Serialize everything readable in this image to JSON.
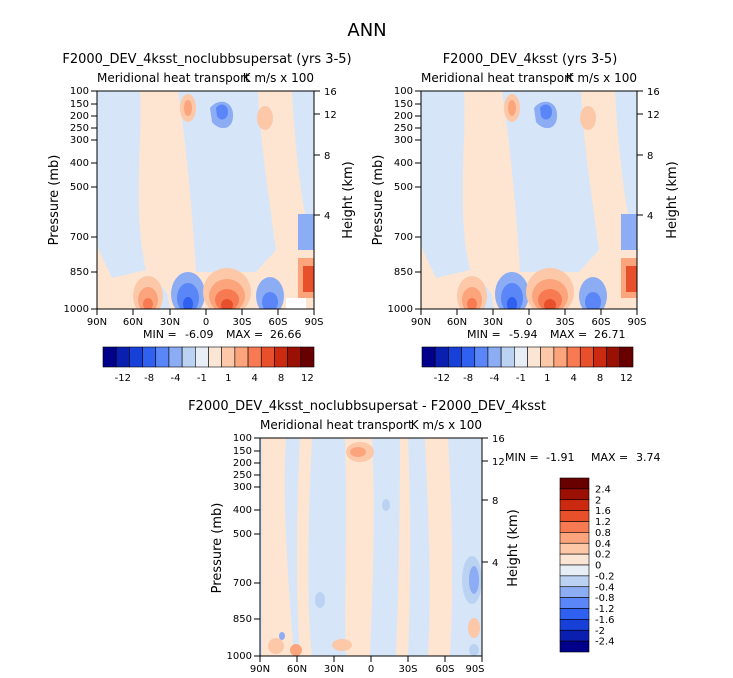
{
  "page_title": "ANN",
  "chart_data": [
    {
      "type": "heatmap",
      "id": "top-left",
      "title": "F2000_DEV_4ksst_noclubbsupersat (yrs 3-5)",
      "subtitle_left": "Meridional heat transport",
      "subtitle_right": "K m/s x 100",
      "ylabel": "Pressure (mb)",
      "ylabel_right": "Height (km)",
      "x_ticks": [
        "90N",
        "60N",
        "30N",
        "0",
        "30S",
        "60S",
        "90S"
      ],
      "y_ticks": [
        100,
        150,
        200,
        250,
        300,
        400,
        500,
        700,
        850,
        1000
      ],
      "y_right_ticks": [
        16,
        12,
        8,
        4
      ],
      "min_label": "MIN =",
      "min_value": "-6.09",
      "max_label": "MAX =",
      "max_value": "26.66",
      "levels": [
        -12,
        -8,
        -4,
        -1,
        1,
        4,
        8,
        12
      ],
      "colorbar_labels": [
        "-12",
        "-8",
        "-4",
        "-1",
        "1",
        "4",
        "8",
        "12"
      ]
    },
    {
      "type": "heatmap",
      "id": "top-right",
      "title": "F2000_DEV_4ksst (yrs 3-5)",
      "subtitle_left": "Meridional heat transport",
      "subtitle_right": "K m/s x 100",
      "ylabel": "Pressure (mb)",
      "ylabel_right": "Height (km)",
      "x_ticks": [
        "90N",
        "60N",
        "30N",
        "0",
        "30S",
        "60S",
        "90S"
      ],
      "y_ticks": [
        100,
        150,
        200,
        250,
        300,
        400,
        500,
        700,
        850,
        1000
      ],
      "y_right_ticks": [
        16,
        12,
        8,
        4
      ],
      "min_label": "MIN =",
      "min_value": "-5.94",
      "max_label": "MAX =",
      "max_value": "26.71",
      "levels": [
        -12,
        -8,
        -4,
        -1,
        1,
        4,
        8,
        12
      ],
      "colorbar_labels": [
        "-12",
        "-8",
        "-4",
        "-1",
        "1",
        "4",
        "8",
        "12"
      ]
    },
    {
      "type": "heatmap",
      "id": "bottom",
      "title": "F2000_DEV_4ksst_noclubbsupersat - F2000_DEV_4ksst",
      "subtitle_left": "Meridional heat transport",
      "subtitle_right": "K m/s x 100",
      "ylabel": "Pressure (mb)",
      "ylabel_right": "Height (km)",
      "x_ticks": [
        "90N",
        "60N",
        "30N",
        "0",
        "30S",
        "60S",
        "90S"
      ],
      "y_ticks": [
        100,
        150,
        200,
        250,
        300,
        400,
        500,
        700,
        850,
        1000
      ],
      "y_right_ticks": [
        16,
        12,
        8,
        4
      ],
      "min_label": "MIN =",
      "min_value": "-1.91",
      "max_label": "MAX =",
      "max_value": "3.74",
      "levels": [
        -2.4,
        -2,
        -1.6,
        -1.2,
        -0.8,
        -0.4,
        -0.2,
        0,
        0.2,
        0.4,
        0.8,
        1.2,
        1.6,
        2,
        2.4
      ],
      "colorbar_labels": [
        "2.4",
        "2",
        "1.6",
        "1.2",
        "0.8",
        "0.4",
        "0.2",
        "0",
        "-0.2",
        "-0.4",
        "-0.8",
        "-1.2",
        "-1.6",
        "-2",
        "-2.4"
      ]
    }
  ],
  "colors": {
    "palette": [
      "#00008b",
      "#0a1fb0",
      "#1640d8",
      "#3060f0",
      "#5a86f8",
      "#8cacf4",
      "#bcd2f2",
      "#e8eef6",
      "#fbe6d6",
      "#fcc8a8",
      "#fca47c",
      "#f87a52",
      "#e8502c",
      "#cc2a10",
      "#9a1004",
      "#680000"
    ],
    "bg_pos": "#fde5d2",
    "bg_neg": "#d6e6f8"
  }
}
